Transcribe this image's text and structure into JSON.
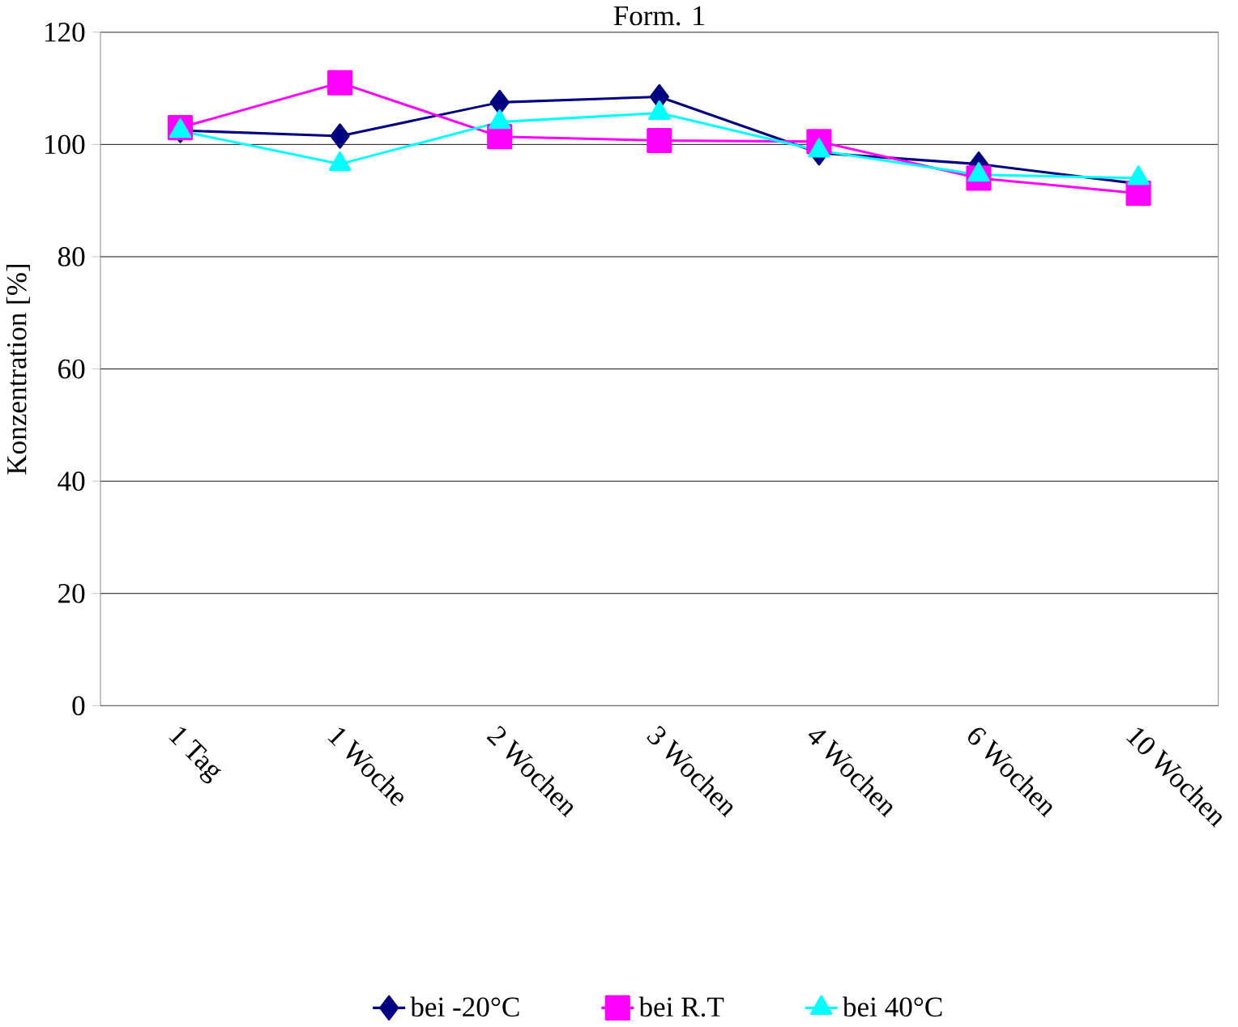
{
  "chart_data": {
    "type": "line",
    "title": "Form. 1",
    "ylabel": "Konzentration  [%]",
    "categories": [
      "1 Tag",
      "1 Woche",
      "2 Wochen",
      "3 Wochen",
      "4 Wochen",
      "6 Wochen",
      "10 Wochen"
    ],
    "ylim": [
      0,
      120
    ],
    "yticks": [
      0,
      20,
      40,
      60,
      80,
      100,
      120
    ],
    "grid": "y",
    "legend": "bottom",
    "series": [
      {
        "name": "bei -20°C",
        "color": "#000080",
        "marker": "diamond",
        "values": [
          102.5,
          101.5,
          107.5,
          108.5,
          98.5,
          96.5,
          93
        ]
      },
      {
        "name": "bei R.T",
        "color": "#ff00ff",
        "marker": "square",
        "values": [
          103,
          111,
          101.4,
          100.7,
          100.5,
          94,
          91.3
        ]
      },
      {
        "name": "bei 40°C",
        "color": "#00ffff",
        "marker": "triangle",
        "values": [
          102.4,
          96.5,
          104,
          105.6,
          98.9,
          94.6,
          94
        ]
      }
    ]
  }
}
